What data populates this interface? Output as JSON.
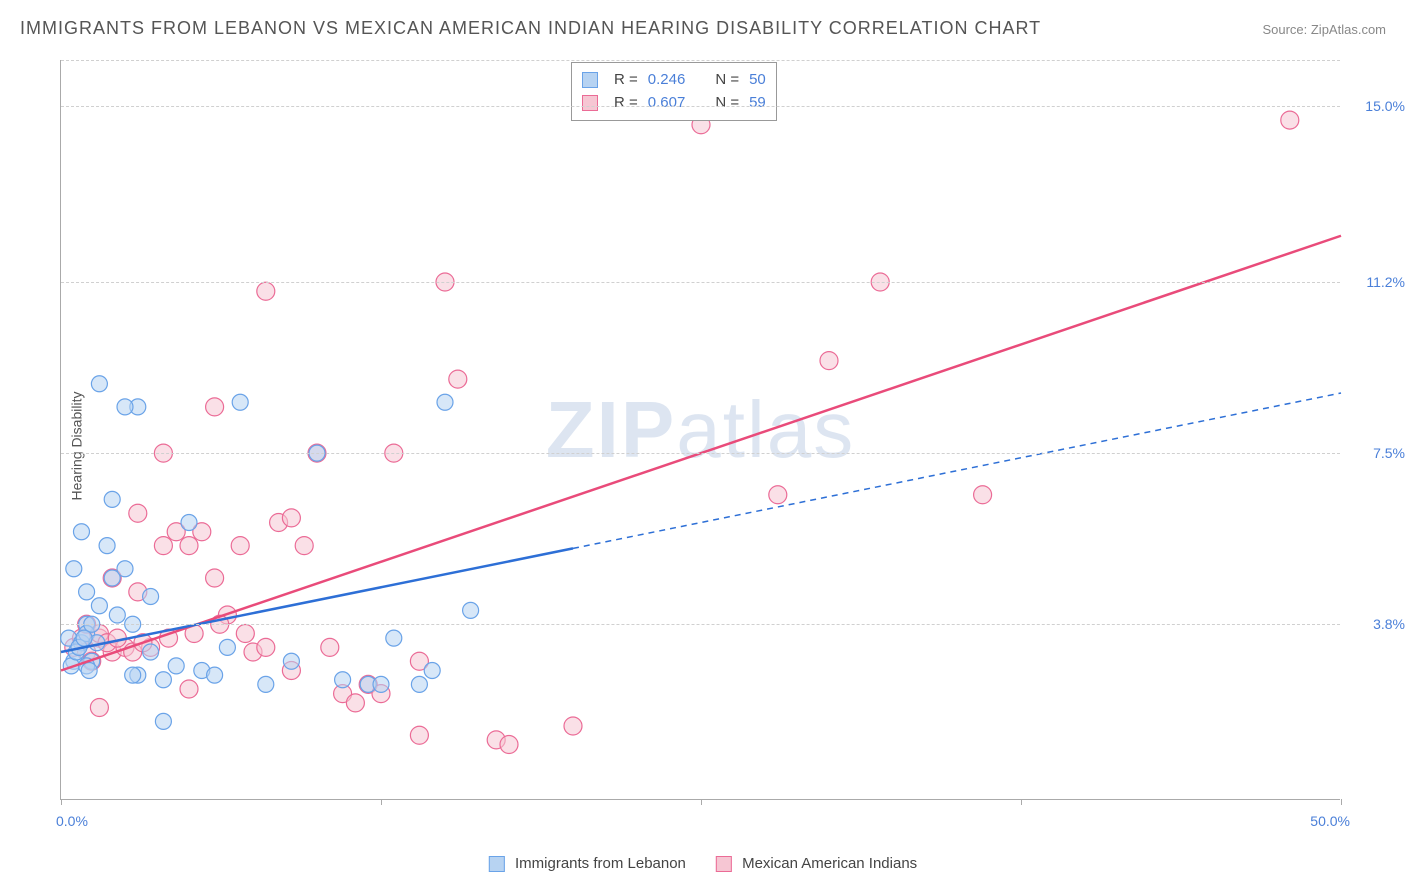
{
  "title": "IMMIGRANTS FROM LEBANON VS MEXICAN AMERICAN INDIAN HEARING DISABILITY CORRELATION CHART",
  "source": "Source: ZipAtlas.com",
  "ylabel": "Hearing Disability",
  "watermark_zip": "ZIP",
  "watermark_atlas": "atlas",
  "chart": {
    "type": "scatter",
    "xlim": [
      0,
      50
    ],
    "ylim": [
      0,
      16
    ],
    "x_tick_left": "0.0%",
    "x_tick_right": "50.0%",
    "x_minor_ticks": [
      0,
      12.5,
      25,
      37.5,
      50
    ],
    "y_grid": [
      {
        "val": 3.8,
        "label": "3.8%"
      },
      {
        "val": 7.5,
        "label": "7.5%"
      },
      {
        "val": 11.2,
        "label": "11.2%"
      },
      {
        "val": 15.0,
        "label": "15.0%"
      }
    ],
    "background_color": "#ffffff",
    "grid_color": "#d0d0d0"
  },
  "series_a": {
    "name": "Immigrants from Lebanon",
    "color_fill": "#b7d3f2",
    "color_stroke": "#6aa3e8",
    "line_color": "#2d6fd6",
    "R_label": "R =",
    "R": "0.246",
    "N_label": "N =",
    "N": "50",
    "trend_x1": 0,
    "trend_y1": 3.2,
    "trend_x2": 50,
    "trend_y2": 8.8,
    "solid_until_x": 20,
    "marker_radius": 8,
    "points": [
      [
        0.3,
        3.5
      ],
      [
        0.5,
        3.0
      ],
      [
        0.8,
        3.4
      ],
      [
        1.0,
        3.8
      ],
      [
        1.2,
        3.0
      ],
      [
        0.4,
        2.9
      ],
      [
        0.6,
        3.2
      ],
      [
        1.5,
        4.2
      ],
      [
        1.0,
        2.9
      ],
      [
        1.8,
        5.5
      ],
      [
        2.0,
        4.8
      ],
      [
        2.5,
        5.0
      ],
      [
        0.5,
        5.0
      ],
      [
        1.0,
        4.5
      ],
      [
        0.8,
        5.8
      ],
      [
        2.0,
        6.5
      ],
      [
        3.0,
        2.7
      ],
      [
        3.5,
        3.2
      ],
      [
        4.0,
        2.6
      ],
      [
        2.8,
        2.7
      ],
      [
        3.5,
        4.4
      ],
      [
        5.0,
        6.0
      ],
      [
        5.5,
        2.8
      ],
      [
        6.0,
        2.7
      ],
      [
        4.5,
        2.9
      ],
      [
        7.0,
        8.6
      ],
      [
        3.0,
        8.5
      ],
      [
        1.5,
        9.0
      ],
      [
        2.5,
        8.5
      ],
      [
        4.0,
        1.7
      ],
      [
        6.5,
        3.3
      ],
      [
        8.0,
        2.5
      ],
      [
        9.0,
        3.0
      ],
      [
        10.0,
        7.5
      ],
      [
        11.0,
        2.6
      ],
      [
        12.0,
        2.5
      ],
      [
        13.0,
        3.5
      ],
      [
        14.0,
        2.5
      ],
      [
        15.0,
        8.6
      ],
      [
        16.0,
        4.1
      ],
      [
        12.5,
        2.5
      ],
      [
        14.5,
        2.8
      ],
      [
        1.0,
        3.6
      ],
      [
        1.2,
        3.8
      ],
      [
        1.4,
        3.4
      ],
      [
        0.7,
        3.3
      ],
      [
        0.9,
        3.5
      ],
      [
        1.1,
        2.8
      ],
      [
        2.2,
        4.0
      ],
      [
        2.8,
        3.8
      ]
    ]
  },
  "series_b": {
    "name": "Mexican American Indians",
    "color_fill": "#f6c6d3",
    "color_stroke": "#eb6b96",
    "line_color": "#e94b7a",
    "R_label": "R =",
    "R": "0.607",
    "N_label": "N =",
    "N": "59",
    "trend_x1": 0,
    "trend_y1": 2.8,
    "trend_x2": 50,
    "trend_y2": 12.2,
    "marker_radius": 9,
    "points": [
      [
        0.5,
        3.3
      ],
      [
        0.8,
        3.5
      ],
      [
        1.0,
        3.2
      ],
      [
        1.2,
        3.0
      ],
      [
        1.5,
        3.5
      ],
      [
        2.0,
        3.2
      ],
      [
        2.5,
        3.3
      ],
      [
        1.0,
        3.8
      ],
      [
        1.5,
        3.6
      ],
      [
        3.0,
        4.5
      ],
      [
        3.5,
        3.3
      ],
      [
        4.0,
        5.5
      ],
      [
        4.5,
        5.8
      ],
      [
        5.0,
        5.5
      ],
      [
        5.5,
        5.8
      ],
      [
        6.0,
        4.8
      ],
      [
        6.5,
        4.0
      ],
      [
        7.0,
        5.5
      ],
      [
        7.5,
        3.2
      ],
      [
        8.0,
        3.3
      ],
      [
        8.5,
        6.0
      ],
      [
        9.0,
        6.1
      ],
      [
        9.5,
        5.5
      ],
      [
        10.0,
        7.5
      ],
      [
        10.5,
        3.3
      ],
      [
        11.0,
        2.3
      ],
      [
        11.5,
        2.1
      ],
      [
        12.0,
        2.5
      ],
      [
        12.5,
        2.3
      ],
      [
        13.0,
        7.5
      ],
      [
        14.0,
        3.0
      ],
      [
        15.0,
        11.2
      ],
      [
        15.5,
        9.1
      ],
      [
        17.0,
        1.3
      ],
      [
        17.5,
        1.2
      ],
      [
        8.0,
        11.0
      ],
      [
        20.0,
        1.6
      ],
      [
        28.0,
        6.6
      ],
      [
        30.0,
        9.5
      ],
      [
        32.0,
        11.2
      ],
      [
        36.0,
        6.6
      ],
      [
        25.0,
        14.6
      ],
      [
        48.0,
        14.7
      ],
      [
        1.8,
        3.4
      ],
      [
        2.2,
        3.5
      ],
      [
        2.8,
        3.2
      ],
      [
        3.2,
        3.4
      ],
      [
        4.2,
        3.5
      ],
      [
        5.2,
        3.6
      ],
      [
        6.2,
        3.8
      ],
      [
        7.2,
        3.6
      ],
      [
        3.0,
        6.2
      ],
      [
        4.0,
        7.5
      ],
      [
        1.5,
        2.0
      ],
      [
        5.0,
        2.4
      ],
      [
        9.0,
        2.8
      ],
      [
        14.0,
        1.4
      ],
      [
        6.0,
        8.5
      ],
      [
        2.0,
        4.8
      ]
    ]
  },
  "bottom_legend": {
    "a": "Immigrants from Lebanon",
    "b": "Mexican American Indians"
  }
}
